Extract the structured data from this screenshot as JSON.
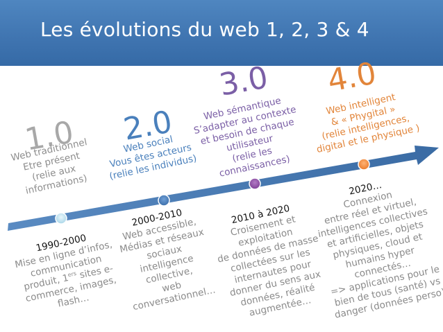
{
  "title": "Les évolutions du web 1, 2, 3 & 4",
  "colors": {
    "header": "#4a80bc",
    "arrow": "#3d70a8",
    "v1": "#a7a7a7",
    "v2": "#4a80bc",
    "v3": "#7b5fa6",
    "v4": "#e2853a",
    "marker1": "#bfe2ef",
    "marker2": "#4a80bc",
    "marker3": "#8a4fa0",
    "marker4": "#f08a3c"
  },
  "stages": [
    {
      "version": "1.0",
      "description": [
        "Web traditionnel",
        "Etre présent",
        "(relie aux",
        "informations)"
      ],
      "period": "1990-2000",
      "details": [
        "Mise en ligne d’infos,",
        "communication",
        "produit, 1",
        "commerce, images,",
        "flash…"
      ],
      "details_sup": "ers",
      "details_after_sup": " sites e-"
    },
    {
      "version": "2.0",
      "description": [
        "Web social",
        "Vous êtes acteurs",
        "(relie les individus)"
      ],
      "period": "2000-2010",
      "details": [
        "Web accessible,",
        "Médias et réseaux",
        "sociaux",
        "intelligence",
        "collective,",
        "web",
        "conversationnel…"
      ]
    },
    {
      "version": "3.0",
      "description": [
        "Web sémantique",
        "S’adapter au contexte",
        "et besoin de chaque",
        "utilisateur",
        "(relie les",
        "connaissances)"
      ],
      "period": "2010 à 2020",
      "details": [
        "Croisement et",
        "exploitation",
        "de données de masse",
        "collectées sur les",
        "internautes pour",
        "donner du sens aux",
        "données, réalité",
        "augmentée…"
      ]
    },
    {
      "version": "4.0",
      "description": [
        "Web intelligent",
        "& « Phygital »",
        "(relie intelligences,",
        "digital et le physique )"
      ],
      "period": "2020…",
      "details": [
        "Connexion",
        "entre réel et virtuel,",
        "intelligences collectives",
        "et artificielles, objets",
        "physiques, cloud et",
        "humains hyper",
        "connectés…",
        "=> applications pour le",
        "bien de tous (santé) vs",
        "danger (données perso)"
      ]
    }
  ]
}
